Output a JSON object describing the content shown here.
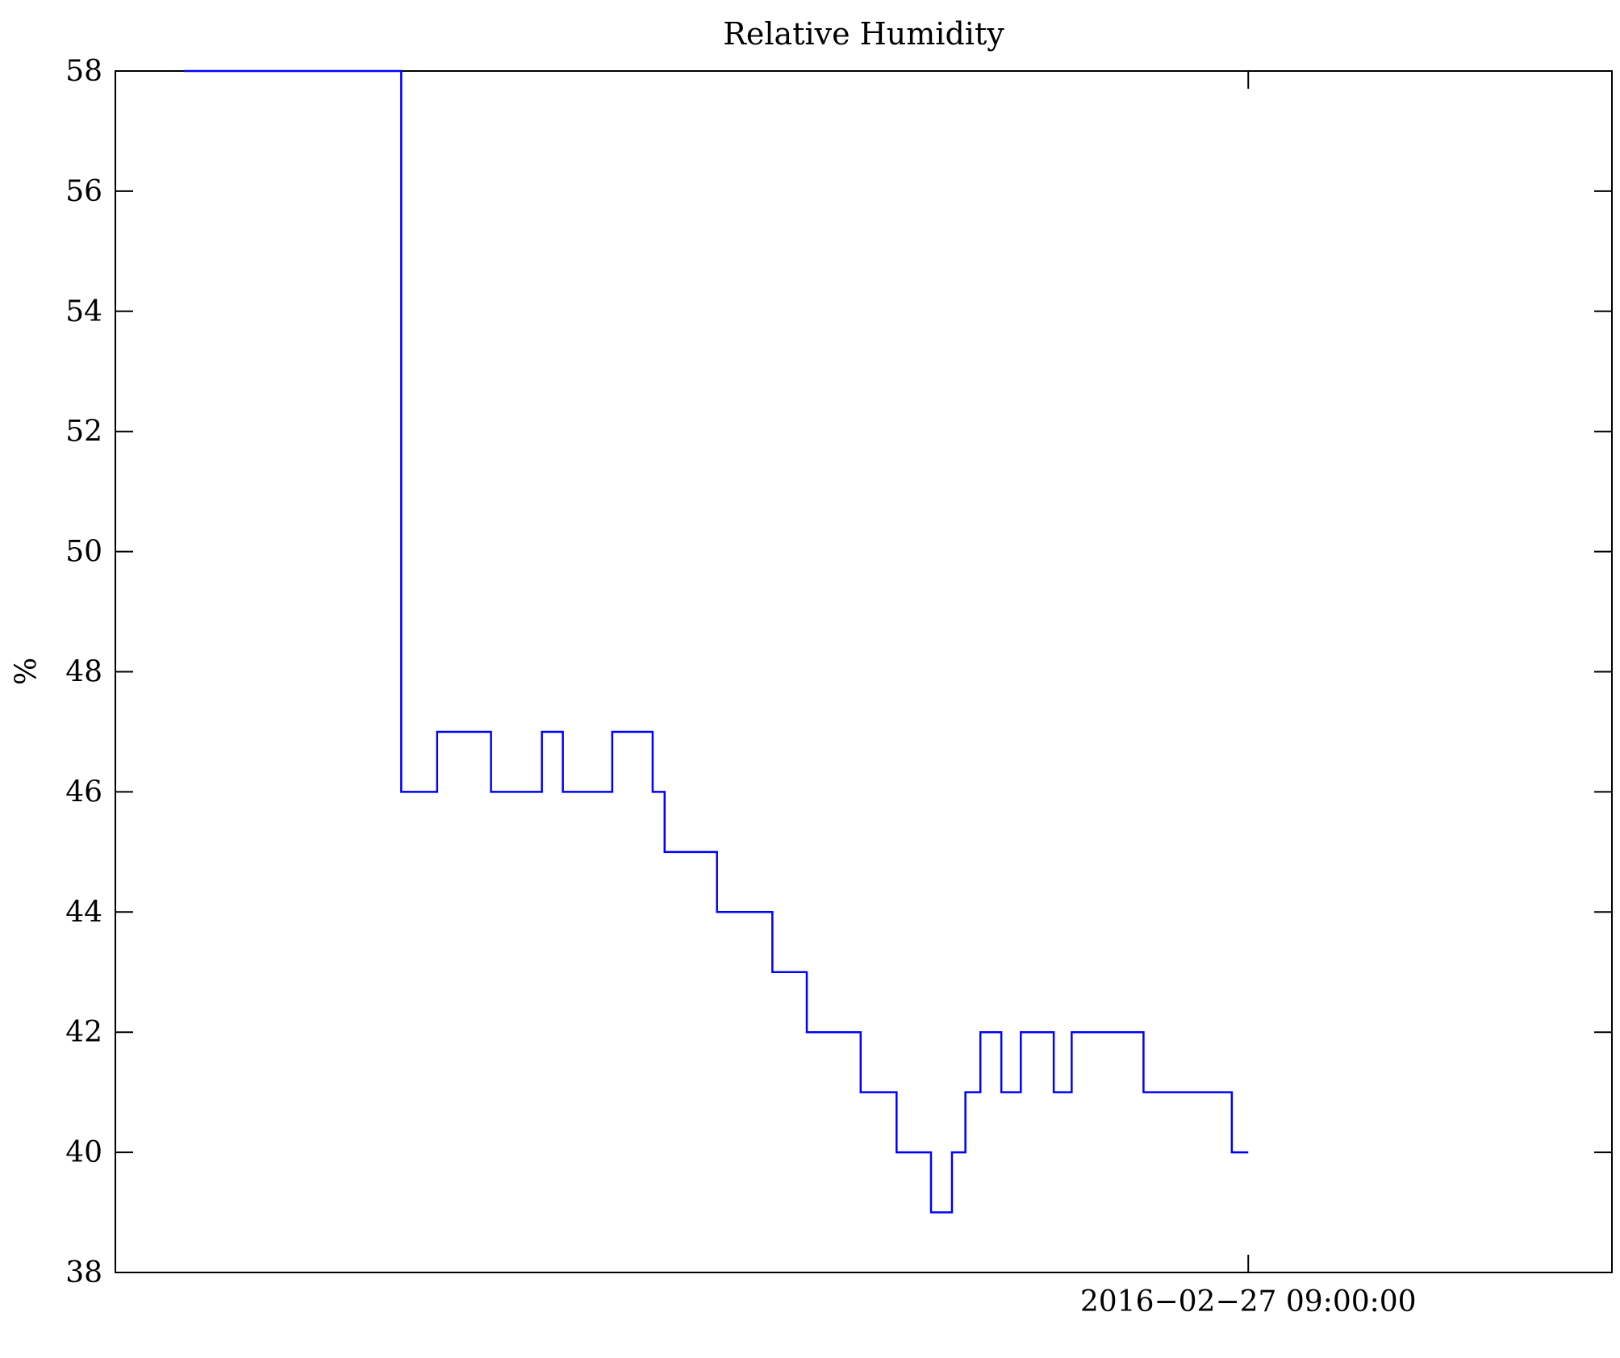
{
  "chart_data": {
    "type": "line",
    "style": "step",
    "title": "Relative Humidity",
    "ylabel": "%",
    "xlabel": "",
    "ylim": [
      38,
      58
    ],
    "yticks": [
      38,
      40,
      42,
      44,
      46,
      48,
      50,
      52,
      54,
      56,
      58
    ],
    "xticks": [
      {
        "pos": 0.757,
        "label": "2016−02−27 09:00:00"
      }
    ],
    "grid": false,
    "legend": "none",
    "line_color": "#0000ff",
    "axis_color": "#000000",
    "step_segments": [
      [
        0.046,
        0.191,
        58
      ],
      [
        0.191,
        0.215,
        46
      ],
      [
        0.215,
        0.251,
        47
      ],
      [
        0.251,
        0.285,
        46
      ],
      [
        0.285,
        0.299,
        47
      ],
      [
        0.299,
        0.332,
        46
      ],
      [
        0.332,
        0.359,
        47
      ],
      [
        0.359,
        0.367,
        46
      ],
      [
        0.367,
        0.402,
        45
      ],
      [
        0.402,
        0.439,
        44
      ],
      [
        0.439,
        0.462,
        43
      ],
      [
        0.462,
        0.498,
        42
      ],
      [
        0.498,
        0.522,
        41
      ],
      [
        0.522,
        0.545,
        40
      ],
      [
        0.545,
        0.559,
        39
      ],
      [
        0.559,
        0.568,
        40
      ],
      [
        0.568,
        0.578,
        41
      ],
      [
        0.578,
        0.592,
        42
      ],
      [
        0.592,
        0.605,
        41
      ],
      [
        0.605,
        0.627,
        42
      ],
      [
        0.627,
        0.639,
        41
      ],
      [
        0.639,
        0.687,
        42
      ],
      [
        0.687,
        0.746,
        41
      ],
      [
        0.746,
        0.757,
        40
      ]
    ]
  }
}
